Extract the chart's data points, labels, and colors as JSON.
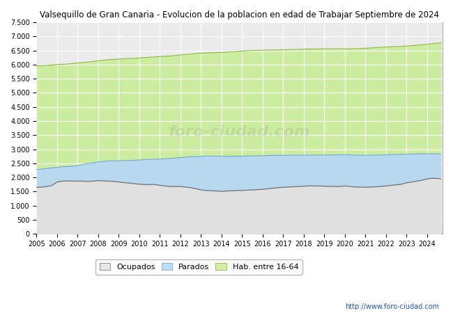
{
  "title": "Valsequillo de Gran Canaria - Evolucion de la poblacion en edad de Trabajar Septiembre de 2024",
  "title_fontsize": 8.5,
  "ylim": [
    0,
    7500
  ],
  "yticks": [
    0,
    500,
    1000,
    1500,
    2000,
    2500,
    3000,
    3500,
    4000,
    4500,
    5000,
    5500,
    6000,
    6500,
    7000,
    7500
  ],
  "ytick_labels": [
    "0",
    "500",
    "1.000",
    "1.500",
    "2.000",
    "2.500",
    "3.000",
    "3.500",
    "4.000",
    "4.500",
    "5.000",
    "5.500",
    "6.000",
    "6.500",
    "7.000",
    "7.500"
  ],
  "xticks": [
    2005,
    2006,
    2007,
    2008,
    2009,
    2010,
    2011,
    2012,
    2013,
    2014,
    2015,
    2016,
    2017,
    2018,
    2019,
    2020,
    2021,
    2022,
    2023,
    2024
  ],
  "background_color": "#ffffff",
  "plot_bg_color": "#ebebeb",
  "grid_color": "#ffffff",
  "watermark": "foro-ciudad.com",
  "url": "http://www.foro-ciudad.com",
  "legend_labels": [
    "Ocupados",
    "Parados",
    "Hab. entre 16-64"
  ],
  "legend_colors": [
    "#e8e8e8",
    "#c0dff5",
    "#d4edaa"
  ],
  "legend_edge_colors": [
    "#999999",
    "#88bde0",
    "#99cc55"
  ],
  "color_ocupados": "#e0e0e0",
  "color_parados": "#b8d8f0",
  "color_hab": "#cceda0",
  "line_color_ocupados": "#707070",
  "line_color_parados": "#6aaad8",
  "line_color_hab": "#88bb33",
  "years": [
    2005,
    2005.25,
    2005.5,
    2005.75,
    2006,
    2006.25,
    2006.5,
    2006.75,
    2007,
    2007.25,
    2007.5,
    2007.75,
    2008,
    2008.25,
    2008.5,
    2008.75,
    2009,
    2009.25,
    2009.5,
    2009.75,
    2010,
    2010.25,
    2010.5,
    2010.75,
    2011,
    2011.25,
    2011.5,
    2011.75,
    2012,
    2012.25,
    2012.5,
    2012.75,
    2013,
    2013.25,
    2013.5,
    2013.75,
    2014,
    2014.25,
    2014.5,
    2014.75,
    2015,
    2015.25,
    2015.5,
    2015.75,
    2016,
    2016.25,
    2016.5,
    2016.75,
    2017,
    2017.25,
    2017.5,
    2017.75,
    2018,
    2018.25,
    2018.5,
    2018.75,
    2019,
    2019.25,
    2019.5,
    2019.75,
    2020,
    2020.25,
    2020.5,
    2020.75,
    2021,
    2021.25,
    2021.5,
    2021.75,
    2022,
    2022.25,
    2022.5,
    2022.75,
    2023,
    2023.25,
    2023.5,
    2023.75,
    2024,
    2024.08,
    2024.17,
    2024.25,
    2024.33,
    2024.42,
    2024.5,
    2024.58,
    2024.67
  ],
  "ocupados": [
    1650,
    1660,
    1680,
    1720,
    1840,
    1870,
    1880,
    1870,
    1870,
    1870,
    1860,
    1870,
    1890,
    1880,
    1870,
    1860,
    1840,
    1820,
    1800,
    1780,
    1760,
    1750,
    1750,
    1750,
    1720,
    1700,
    1680,
    1680,
    1680,
    1660,
    1640,
    1600,
    1560,
    1540,
    1530,
    1520,
    1510,
    1520,
    1530,
    1540,
    1540,
    1550,
    1560,
    1570,
    1580,
    1600,
    1620,
    1640,
    1650,
    1660,
    1670,
    1680,
    1690,
    1700,
    1700,
    1700,
    1690,
    1685,
    1680,
    1680,
    1700,
    1680,
    1660,
    1660,
    1650,
    1660,
    1670,
    1680,
    1700,
    1720,
    1740,
    1760,
    1810,
    1840,
    1870,
    1900,
    1950,
    1960,
    1965,
    1970,
    1970,
    1970,
    1965,
    1960,
    1955
  ],
  "parados": [
    2280,
    2300,
    2320,
    2340,
    2360,
    2380,
    2390,
    2400,
    2420,
    2460,
    2490,
    2520,
    2550,
    2570,
    2590,
    2590,
    2590,
    2600,
    2600,
    2610,
    2620,
    2630,
    2640,
    2645,
    2655,
    2665,
    2675,
    2690,
    2710,
    2720,
    2730,
    2740,
    2750,
    2755,
    2755,
    2755,
    2750,
    2750,
    2750,
    2755,
    2755,
    2760,
    2765,
    2768,
    2772,
    2778,
    2782,
    2785,
    2785,
    2787,
    2789,
    2790,
    2790,
    2793,
    2793,
    2792,
    2795,
    2797,
    2800,
    2802,
    2810,
    2800,
    2790,
    2790,
    2785,
    2788,
    2790,
    2795,
    2805,
    2810,
    2815,
    2818,
    2825,
    2830,
    2835,
    2840,
    2840,
    2840,
    2840,
    2840,
    2840,
    2840,
    2838,
    2835,
    2830
  ],
  "hab1664": [
    5950,
    5960,
    5970,
    5985,
    6000,
    6010,
    6020,
    6040,
    6060,
    6075,
    6090,
    6110,
    6130,
    6155,
    6170,
    6185,
    6195,
    6205,
    6215,
    6220,
    6235,
    6250,
    6260,
    6270,
    6285,
    6295,
    6305,
    6320,
    6340,
    6355,
    6370,
    6390,
    6405,
    6415,
    6420,
    6425,
    6430,
    6440,
    6450,
    6465,
    6480,
    6490,
    6500,
    6505,
    6510,
    6515,
    6518,
    6520,
    6525,
    6530,
    6535,
    6540,
    6545,
    6550,
    6553,
    6555,
    6558,
    6560,
    6560,
    6562,
    6555,
    6560,
    6565,
    6568,
    6575,
    6590,
    6600,
    6610,
    6620,
    6630,
    6638,
    6642,
    6660,
    6670,
    6685,
    6700,
    6720,
    6730,
    6738,
    6745,
    6750,
    6755,
    6760,
    6765,
    6770
  ]
}
